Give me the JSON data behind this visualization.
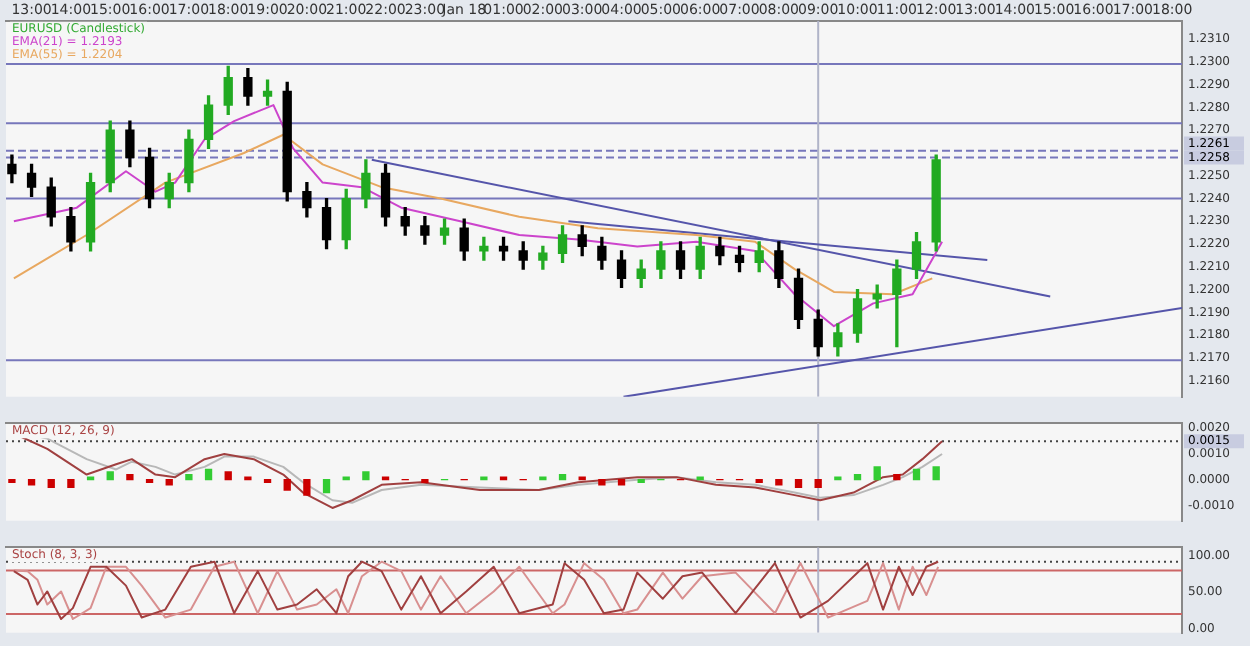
{
  "chart_data": [
    {
      "type": "candlestick",
      "title": "EURUSD (Candlestick)",
      "legend": "top left",
      "x": [
        "--01-17T12:30",
        "--01-17T13:00",
        "--01-17T13:30",
        "--01-17T14:00",
        "--01-17T14:30",
        "--01-17T15:00",
        "--01-17T15:30",
        "--01-17T16:00",
        "--01-17T16:30",
        "--01-17T17:00",
        "--01-17T17:30",
        "--01-17T18:00",
        "--01-17T18:30",
        "--01-17T19:00",
        "--01-17T19:30",
        "--01-17T20:00",
        "--01-17T20:30",
        "--01-17T21:00",
        "--01-17T21:30",
        "--01-17T22:00",
        "--01-17T22:30",
        "--01-17T23:00",
        "--01-17T23:30",
        "--01-18T00:00",
        "--01-18T00:30",
        "--01-18T01:00",
        "--01-18T01:30",
        "--01-18T02:00",
        "--01-18T02:30",
        "--01-18T03:00",
        "--01-18T03:30",
        "--01-18T04:00",
        "--01-18T04:30",
        "--01-18T05:00",
        "--01-18T05:30",
        "--01-18T06:00",
        "--01-18T06:30",
        "--01-18T07:00",
        "--01-18T07:30",
        "--01-18T08:00",
        "--01-18T08:30",
        "--01-18T09:00",
        "--01-18T09:30",
        "--01-18T10:00",
        "--01-18T10:30",
        "--01-18T11:00",
        "--01-18T11:30",
        "--01-18T12:00"
      ],
      "ohlc": [
        [
          1.2255,
          1.2259,
          1.2247,
          1.2251
        ],
        [
          1.2251,
          1.2255,
          1.2241,
          1.2245
        ],
        [
          1.2245,
          1.2249,
          1.2228,
          1.2232
        ],
        [
          1.2232,
          1.2236,
          1.2217,
          1.2221
        ],
        [
          1.2221,
          1.2251,
          1.2217,
          1.2247
        ],
        [
          1.2247,
          1.2274,
          1.2243,
          1.227
        ],
        [
          1.227,
          1.2274,
          1.2254,
          1.2258
        ],
        [
          1.2258,
          1.2262,
          1.2236,
          1.224
        ],
        [
          1.224,
          1.2251,
          1.2236,
          1.2247
        ],
        [
          1.2247,
          1.227,
          1.2243,
          1.2266
        ],
        [
          1.2266,
          1.2285,
          1.2262,
          1.2281
        ],
        [
          1.2281,
          1.2298,
          1.2277,
          1.2293
        ],
        [
          1.2293,
          1.2297,
          1.2281,
          1.2285
        ],
        [
          1.2285,
          1.2292,
          1.2281,
          1.2287
        ],
        [
          1.2287,
          1.2291,
          1.2239,
          1.2243
        ],
        [
          1.2243,
          1.2247,
          1.2232,
          1.2236
        ],
        [
          1.2236,
          1.224,
          1.2218,
          1.2222
        ],
        [
          1.2222,
          1.2244,
          1.2218,
          1.224
        ],
        [
          1.224,
          1.2257,
          1.2236,
          1.2251
        ],
        [
          1.2251,
          1.2255,
          1.2228,
          1.2232
        ],
        [
          1.2232,
          1.2236,
          1.2224,
          1.2228
        ],
        [
          1.2228,
          1.2232,
          1.222,
          1.2224
        ],
        [
          1.2224,
          1.2231,
          1.222,
          1.2227
        ],
        [
          1.2227,
          1.2231,
          1.2213,
          1.2217
        ],
        [
          1.2217,
          1.2223,
          1.2213,
          1.2219
        ],
        [
          1.2219,
          1.2223,
          1.2213,
          1.2217
        ],
        [
          1.2217,
          1.2221,
          1.2209,
          1.2213
        ],
        [
          1.2213,
          1.2219,
          1.2209,
          1.2216
        ],
        [
          1.2216,
          1.2228,
          1.2212,
          1.2224
        ],
        [
          1.2224,
          1.2228,
          1.2215,
          1.2219
        ],
        [
          1.2219,
          1.2223,
          1.2209,
          1.2213
        ],
        [
          1.2213,
          1.2217,
          1.2201,
          1.2205
        ],
        [
          1.2205,
          1.2213,
          1.2201,
          1.2209
        ],
        [
          1.2209,
          1.2221,
          1.2205,
          1.2217
        ],
        [
          1.2217,
          1.2221,
          1.2205,
          1.2209
        ],
        [
          1.2209,
          1.2223,
          1.2205,
          1.2219
        ],
        [
          1.2219,
          1.2223,
          1.2211,
          1.2215
        ],
        [
          1.2215,
          1.2219,
          1.2208,
          1.2212
        ],
        [
          1.2212,
          1.2221,
          1.2208,
          1.2217
        ],
        [
          1.2217,
          1.2221,
          1.2201,
          1.2205
        ],
        [
          1.2205,
          1.2209,
          1.2183,
          1.2187
        ],
        [
          1.2187,
          1.2191,
          1.2171,
          1.2175
        ],
        [
          1.2175,
          1.2185,
          1.2171,
          1.2181
        ],
        [
          1.2181,
          1.22,
          1.2177,
          1.2196
        ],
        [
          1.2196,
          1.2202,
          1.2192,
          1.2198
        ],
        [
          1.2198,
          1.2213,
          1.2175,
          1.2209
        ],
        [
          1.2209,
          1.2225,
          1.2205,
          1.2221
        ],
        [
          1.2221,
          1.2259,
          1.2217,
          1.2257
        ]
      ],
      "series": [
        {
          "type": "line",
          "name": "EMA(21) = 1.2193",
          "color": "#cc44cc",
          "x": [
            "--01-17T12:33",
            "--01-17T14:09",
            "--01-17T15:24",
            "--01-17T16:09",
            "--01-17T16:39",
            "--01-17T17:24",
            "--01-17T18:09",
            "--01-17T19:09",
            "--01-17T19:39",
            "--01-17T20:24",
            "--01-17T21:24",
            "--01-17T22:24",
            "--01-17T23:54",
            "--01-18T01:24",
            "--01-18T02:54",
            "--01-18T04:24",
            "--01-18T05:54",
            "--01-18T07:24",
            "--01-18T08:24",
            "--01-18T09:24",
            "--01-18T10:24",
            "--01-18T11:24",
            "--01-18T12:09"
          ],
          "values": [
            1.223,
            1.2236,
            1.2252,
            1.2243,
            1.2247,
            1.2266,
            1.2274,
            1.2281,
            1.2262,
            1.2247,
            1.2245,
            1.2236,
            1.223,
            1.2224,
            1.2222,
            1.2219,
            1.2221,
            1.2217,
            1.2198,
            1.2184,
            1.2194,
            1.2198,
            1.2221
          ]
        },
        {
          "type": "line",
          "name": "EMA(55) = 1.2204",
          "color": "#e8a860",
          "x": [
            "--01-17T12:33",
            "--01-17T14:24",
            "--01-17T16:24",
            "--01-17T18:24",
            "--01-17T19:24",
            "--01-17T20:24",
            "--01-17T21:54",
            "--01-17T23:24",
            "--01-18T01:24",
            "--01-18T03:24",
            "--01-18T05:54",
            "--01-18T07:24",
            "--01-18T08:24",
            "--01-18T09:24",
            "--01-18T10:54",
            "--01-18T11:54"
          ],
          "values": [
            1.2205,
            1.2224,
            1.2247,
            1.226,
            1.2268,
            1.2255,
            1.2245,
            1.224,
            1.2232,
            1.2227,
            1.2224,
            1.2221,
            1.2209,
            1.2199,
            1.2198,
            1.2205
          ]
        },
        {
          "type": "line",
          "color": "#5555aa",
          "x": [
            "--01-17T21:39",
            "--01-18T14:54"
          ],
          "values": [
            1.2257,
            1.2197
          ]
        },
        {
          "type": "line",
          "color": "#5555aa",
          "x": [
            "--01-18T02:39",
            "--01-18T13:18"
          ],
          "values": [
            1.223,
            1.2213
          ]
        },
        {
          "type": "line",
          "color": "#5555aa",
          "x": [
            "--01-18T04:03",
            "--01-18T18:15"
          ],
          "values": [
            1.2153,
            1.2192
          ]
        }
      ],
      "xlim": [
        "--01-17T12:21",
        "--01-18T18:15"
      ],
      "xticks": [
        {
          "value": "--01-17T13:00",
          "label": "13:00"
        },
        {
          "value": "--01-17T14:00",
          "label": "14:00"
        },
        {
          "value": "--01-17T15:00",
          "label": "15:00"
        },
        {
          "value": "--01-17T16:00",
          "label": "16:00"
        },
        {
          "value": "--01-17T17:00",
          "label": "17:00"
        },
        {
          "value": "--01-17T18:00",
          "label": "18:00"
        },
        {
          "value": "--01-17T19:00",
          "label": "19:00"
        },
        {
          "value": "--01-17T20:00",
          "label": "20:00"
        },
        {
          "value": "--01-17T21:00",
          "label": "21:00"
        },
        {
          "value": "--01-17T22:00",
          "label": "22:00"
        },
        {
          "value": "--01-17T23:00",
          "label": "23:00"
        },
        {
          "value": "--01-18T00:00",
          "label": "Jan 18"
        },
        {
          "value": "--01-18T01:00",
          "label": "01:00"
        },
        {
          "value": "--01-18T02:00",
          "label": "02:00"
        },
        {
          "value": "--01-18T03:00",
          "label": "03:00"
        },
        {
          "value": "--01-18T04:00",
          "label": "04:00"
        },
        {
          "value": "--01-18T05:00",
          "label": "05:00"
        },
        {
          "value": "--01-18T06:00",
          "label": "06:00"
        },
        {
          "value": "--01-18T07:00",
          "label": "07:00"
        },
        {
          "value": "--01-18T08:00",
          "label": "08:00"
        },
        {
          "value": "--01-18T09:00",
          "label": "09:00"
        },
        {
          "value": "--01-18T10:00",
          "label": "10:00"
        },
        {
          "value": "--01-18T11:00",
          "label": "11:00"
        },
        {
          "value": "--01-18T12:00",
          "label": "12:00"
        },
        {
          "value": "--01-18T13:00",
          "label": "13:00"
        },
        {
          "value": "--01-18T14:00",
          "label": "14:00"
        },
        {
          "value": "--01-18T15:00",
          "label": "15:00"
        },
        {
          "value": "--01-18T16:00",
          "label": "16:00"
        },
        {
          "value": "--01-18T17:00",
          "label": "17:00"
        },
        {
          "value": "--01-18T18:00",
          "label": "18:00"
        }
      ],
      "ylim": [
        1.2153,
        1.2318
      ],
      "yticks": [
        {
          "value": 1.216,
          "label": "1.2160"
        },
        {
          "value": 1.217,
          "label": "1.2170"
        },
        {
          "value": 1.218,
          "label": "1.2180"
        },
        {
          "value": 1.219,
          "label": "1.2190"
        },
        {
          "value": 1.22,
          "label": "1.2200"
        },
        {
          "value": 1.221,
          "label": "1.2210"
        },
        {
          "value": 1.222,
          "label": "1.2220"
        },
        {
          "value": 1.223,
          "label": "1.2230"
        },
        {
          "value": 1.224,
          "label": "1.2240"
        },
        {
          "value": 1.225,
          "label": "1.2250"
        },
        {
          "value": 1.227,
          "label": "1.2270"
        },
        {
          "value": 1.228,
          "label": "1.2280"
        },
        {
          "value": 1.229,
          "label": "1.2290"
        },
        {
          "value": 1.23,
          "label": "1.2300"
        },
        {
          "value": 1.231,
          "label": "1.2310"
        }
      ],
      "ref_lines": [
        {
          "axis": "y",
          "value": 1.2299,
          "color": "#7777bb"
        },
        {
          "axis": "y",
          "value": 1.2273,
          "color": "#7777bb"
        },
        {
          "axis": "y",
          "value": 1.2261,
          "label": "1.2261",
          "color": "#7777bb",
          "line_style": "dashed"
        },
        {
          "axis": "y",
          "value": 1.2258,
          "label": "1.2258",
          "color": "#7777bb",
          "line_style": "dashed"
        },
        {
          "axis": "y",
          "value": 1.224,
          "color": "#7777bb"
        },
        {
          "axis": "y",
          "value": 1.2169,
          "color": "#7777bb"
        },
        {
          "axis": "x",
          "value": "--01-18T09:00",
          "color": "#b0b4c8"
        }
      ]
    },
    {
      "type": "bar",
      "title": "MACD (12, 26, 9)",
      "x": [
        "--01-17T12:30",
        "--01-17T13:00",
        "--01-17T13:30",
        "--01-17T14:00",
        "--01-17T14:30",
        "--01-17T15:00",
        "--01-17T15:30",
        "--01-17T16:00",
        "--01-17T16:30",
        "--01-17T17:00",
        "--01-17T17:30",
        "--01-17T18:00",
        "--01-17T18:30",
        "--01-17T19:00",
        "--01-17T19:30",
        "--01-17T20:00",
        "--01-17T20:30",
        "--01-17T21:00",
        "--01-17T21:30",
        "--01-17T22:00",
        "--01-17T22:30",
        "--01-17T23:00",
        "--01-17T23:30",
        "--01-18T00:00",
        "--01-18T00:30",
        "--01-18T01:00",
        "--01-18T01:30",
        "--01-18T02:00",
        "--01-18T02:30",
        "--01-18T03:00",
        "--01-18T03:30",
        "--01-18T04:00",
        "--01-18T04:30",
        "--01-18T05:00",
        "--01-18T05:30",
        "--01-18T06:00",
        "--01-18T06:30",
        "--01-18T07:00",
        "--01-18T07:30",
        "--01-18T08:00",
        "--01-18T08:30",
        "--01-18T09:00",
        "--01-18T09:30",
        "--01-18T10:00",
        "--01-18T10:30",
        "--01-18T11:00",
        "--01-18T11:30",
        "--01-18T12:00"
      ],
      "series": [
        {
          "type": "bar",
          "values": [
            -0.0001,
            -0.0002,
            -0.0003,
            -0.0003,
            0.0001,
            0.0003,
            0.0002,
            -0.0001,
            -0.0002,
            0.0002,
            0.0004,
            0.0003,
            0.0001,
            -0.0001,
            -0.0004,
            -0.0006,
            -0.0005,
            0.0001,
            0.0003,
            0.0001,
            0,
            -0.0001,
            0,
            0,
            0.0001,
            0.0001,
            0,
            0.0001,
            0.0002,
            0.0001,
            -0.0002,
            -0.0002,
            -0.0001,
            0,
            0,
            0.0001,
            0,
            0,
            -0.0001,
            -0.0002,
            -0.0003,
            -0.0003,
            0.0001,
            0.0002,
            0.0005,
            0.0002,
            0.0004,
            0.0005
          ],
          "colors": [
            "#cc0000",
            "#cc0000",
            "#cc0000",
            "#cc0000",
            "#33cc33",
            "#33cc33",
            "#cc0000",
            "#cc0000",
            "#cc0000",
            "#33cc33",
            "#33cc33",
            "#cc0000",
            "#cc0000",
            "#cc0000",
            "#cc0000",
            "#cc0000",
            "#33cc33",
            "#33cc33",
            "#33cc33",
            "#cc0000",
            "#cc0000",
            "#cc0000",
            "#33cc33",
            "#cc0000",
            "#33cc33",
            "#cc0000",
            "#cc0000",
            "#33cc33",
            "#33cc33",
            "#cc0000",
            "#cc0000",
            "#cc0000",
            "#33cc33",
            "#33cc33",
            "#cc0000",
            "#33cc33",
            "#cc0000",
            "#cc0000",
            "#cc0000",
            "#cc0000",
            "#cc0000",
            "#cc0000",
            "#33cc33",
            "#33cc33",
            "#33cc33",
            "#cc0000",
            "#33cc33",
            "#33cc33"
          ]
        },
        {
          "type": "line",
          "color": "#a04040",
          "x": [
            "--01-17T12:33",
            "--01-17T13:24",
            "--01-17T14:24",
            "--01-17T15:09",
            "--01-17T15:33",
            "--01-17T16:09",
            "--01-17T16:39",
            "--01-17T17:24",
            "--01-17T17:54",
            "--01-17T18:39",
            "--01-17T19:24",
            "--01-17T19:54",
            "--01-17T20:39",
            "--01-17T21:09",
            "--01-17T21:54",
            "--01-17T22:54",
            "--01-18T00:24",
            "--01-18T01:54",
            "--01-18T02:54",
            "--01-18T04:24",
            "--01-18T05:24",
            "--01-18T06:24",
            "--01-18T07:24",
            "--01-18T08:24",
            "--01-18T09:03",
            "--01-18T09:54",
            "--01-18T10:39",
            "--01-18T11:09",
            "--01-18T11:39",
            "--01-18T12:09"
          ],
          "values": [
            0.0018,
            0.0012,
            0.0002,
            0.0006,
            0.0008,
            0.0002,
            0.0001,
            0.0008,
            0.001,
            0.0008,
            0.0002,
            -0.0005,
            -0.0011,
            -0.0008,
            -0.0002,
            -0.0001,
            -0.0004,
            -0.0004,
            -0.0001,
            0.0001,
            0.0001,
            -0.0002,
            -0.0003,
            -0.0006,
            -0.0008,
            -0.0005,
            0.0001,
            0.0002,
            0.0008,
            0.0015
          ]
        },
        {
          "type": "line",
          "color": "#b8b8b8",
          "x": [
            "--01-17T12:33",
            "--01-17T13:24",
            "--01-17T14:24",
            "--01-17T15:09",
            "--01-17T15:33",
            "--01-17T16:09",
            "--01-17T16:39",
            "--01-17T17:24",
            "--01-17T17:54",
            "--01-17T18:39",
            "--01-17T19:24",
            "--01-17T19:54",
            "--01-17T20:39",
            "--01-17T21:09",
            "--01-17T21:54",
            "--01-17T22:54",
            "--01-18T00:24",
            "--01-18T01:54",
            "--01-18T02:54",
            "--01-18T04:24",
            "--01-18T05:24",
            "--01-18T06:24",
            "--01-18T07:24",
            "--01-18T08:24",
            "--01-18T09:03",
            "--01-18T09:54",
            "--01-18T10:39",
            "--01-18T11:09",
            "--01-18T11:39",
            "--01-18T12:09"
          ],
          "values": [
            0.0019,
            0.0016,
            0.0008,
            0.0004,
            0.0007,
            0.0005,
            0.0002,
            0.0005,
            0.0009,
            0.0009,
            0.0005,
            -0.0001,
            -0.0008,
            -0.0009,
            -0.0004,
            -0.0002,
            -0.0003,
            -0.0004,
            -0.0002,
            0.0,
            0.0001,
            -0.0001,
            -0.0002,
            -0.0005,
            -0.0007,
            -0.0006,
            -0.0002,
            0.0001,
            0.0005,
            0.001
          ]
        }
      ],
      "xlim": [
        "--01-17T12:21",
        "--01-18T18:15"
      ],
      "tick_labels": "y",
      "ylim": [
        -0.0016,
        0.0022
      ],
      "yticks": [
        {
          "value": 0.002,
          "label": "0.0020"
        },
        {
          "value": 0.001,
          "label": "0.0010"
        },
        {
          "value": 0,
          "label": "0.0000"
        },
        {
          "value": -0.001,
          "label": "-0.0010"
        }
      ],
      "ref_lines": [
        {
          "axis": "y",
          "value": 0.0015,
          "label": "0.0015",
          "color": "#444444",
          "line_style": "dotted"
        },
        {
          "axis": "x",
          "value": "--01-18T09:00",
          "color": "#b0b4c8"
        }
      ]
    },
    {
      "type": "line",
      "title": "Stoch (8, 3, 3)",
      "series": [
        {
          "color": "#a04040",
          "x": [
            "--01-17T12:33",
            "--01-17T12:54",
            "--01-17T13:09",
            "--01-17T13:24",
            "--01-17T13:45",
            "--01-17T14:03",
            "--01-17T14:30",
            "--01-17T14:54",
            "--01-17T15:24",
            "--01-17T15:48",
            "--01-17T16:24",
            "--01-17T17:03",
            "--01-17T17:39",
            "--01-17T18:09",
            "--01-17T18:45",
            "--01-17T19:15",
            "--01-17T19:45",
            "--01-17T20:15",
            "--01-17T20:45",
            "--01-17T21:03",
            "--01-17T21:24",
            "--01-17T21:54",
            "--01-17T22:24",
            "--01-17T22:54",
            "--01-17T23:24",
            "--01-18T00:03",
            "--01-18T00:45",
            "--01-18T01:24",
            "--01-18T02:15",
            "--01-18T02:33",
            "--01-18T03:03",
            "--01-18T03:33",
            "--01-18T04:03",
            "--01-18T04:24",
            "--01-18T05:03",
            "--01-18T05:33",
            "--01-18T06:03",
            "--01-18T06:54",
            "--01-18T07:54",
            "--01-18T08:33",
            "--01-18T09:15",
            "--01-18T10:15",
            "--01-18T10:39",
            "--01-18T11:03",
            "--01-18T11:24",
            "--01-18T11:45",
            "--01-18T12:03"
          ],
          "values": [
            79,
            67,
            33,
            51,
            13,
            28,
            85,
            85,
            59,
            15,
            26,
            85,
            92,
            21,
            79,
            26,
            33,
            54,
            21,
            72,
            92,
            79,
            26,
            72,
            21,
            51,
            85,
            21,
            33,
            90,
            67,
            21,
            26,
            77,
            41,
            72,
            77,
            21,
            90,
            15,
            38,
            90,
            26,
            85,
            46,
            85,
            92
          ]
        },
        {
          "color": "#d89090",
          "x": [
            "--01-17T12:33",
            "--01-17T12:54",
            "--01-17T13:09",
            "--01-17T13:24",
            "--01-17T13:45",
            "--01-17T14:03",
            "--01-17T14:30",
            "--01-17T14:54",
            "--01-17T15:24",
            "--01-17T15:48",
            "--01-17T16:24",
            "--01-17T17:03",
            "--01-17T17:39",
            "--01-17T18:09",
            "--01-17T18:45",
            "--01-17T19:15",
            "--01-17T19:45",
            "--01-17T20:15",
            "--01-17T20:45",
            "--01-17T21:03",
            "--01-17T21:24",
            "--01-17T21:54",
            "--01-17T22:24",
            "--01-17T22:54",
            "--01-17T23:24",
            "--01-18T00:03",
            "--01-18T00:45",
            "--01-18T01:24",
            "--01-18T02:15",
            "--01-18T02:33",
            "--01-18T03:03",
            "--01-18T03:33",
            "--01-18T04:03",
            "--01-18T04:24",
            "--01-18T05:03",
            "--01-18T05:33",
            "--01-18T06:03",
            "--01-18T06:54",
            "--01-18T07:54",
            "--01-18T08:33",
            "--01-18T09:15",
            "--01-18T10:15",
            "--01-18T10:39",
            "--01-18T11:03",
            "--01-18T11:24",
            "--01-18T11:45",
            "--01-18T12:03"
          ],
          "values": [
            80,
            79,
            67,
            33,
            51,
            13,
            28,
            85,
            85,
            59,
            15,
            26,
            85,
            92,
            21,
            79,
            26,
            33,
            54,
            21,
            72,
            92,
            79,
            26,
            72,
            21,
            51,
            85,
            21,
            33,
            90,
            67,
            21,
            26,
            77,
            41,
            72,
            77,
            21,
            90,
            15,
            38,
            90,
            26,
            85,
            46,
            85
          ]
        }
      ],
      "xlim": [
        "--01-17T12:21",
        "--01-18T18:15"
      ],
      "tick_labels": "y",
      "ylim": [
        -6,
        112
      ],
      "yticks": [
        {
          "value": 100,
          "label": "100.00"
        },
        {
          "value": 50,
          "label": "50.00"
        },
        {
          "value": 0,
          "label": "0.00"
        }
      ],
      "ref_lines": [
        {
          "axis": "y",
          "value": 92,
          "color": "#444444",
          "line_style": "dotted"
        },
        {
          "axis": "y",
          "value": 80,
          "color": "#cc6666"
        },
        {
          "axis": "y",
          "value": 20,
          "color": "#cc6666"
        },
        {
          "axis": "x",
          "value": "--01-18T09:00",
          "color": "#b0b4c8"
        }
      ]
    }
  ]
}
